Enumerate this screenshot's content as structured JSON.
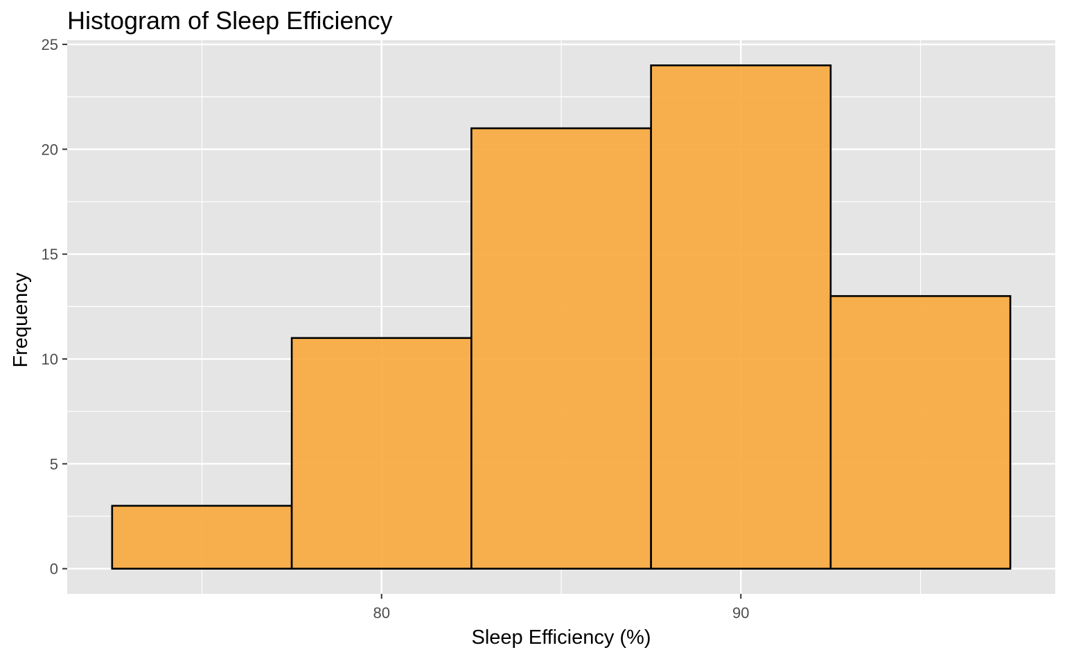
{
  "chart_data": {
    "type": "bar",
    "title": "Histogram of Sleep Efficiency",
    "xlabel": "Sleep Efficiency (%)",
    "ylabel": "Frequency",
    "bins": [
      {
        "x_start": 72.5,
        "x_end": 77.5,
        "count": 3
      },
      {
        "x_start": 77.5,
        "x_end": 82.5,
        "count": 11
      },
      {
        "x_start": 82.5,
        "x_end": 87.5,
        "count": 21
      },
      {
        "x_start": 87.5,
        "x_end": 92.5,
        "count": 24
      },
      {
        "x_start": 92.5,
        "x_end": 97.5,
        "count": 13
      }
    ],
    "xlim": [
      71.25,
      98.75
    ],
    "ylim": [
      -1.2,
      25.2
    ],
    "x_ticks": [
      80,
      90
    ],
    "x_minor_ticks": [
      75,
      85,
      95
    ],
    "y_ticks": [
      0,
      5,
      10,
      15,
      20,
      25
    ],
    "y_minor_ticks": [
      2.5,
      7.5,
      12.5,
      17.5,
      22.5
    ],
    "grid": true,
    "colors": {
      "panel_background": "#e5e5e5",
      "grid": "#ffffff",
      "bar_fill": "#f7a93b",
      "bar_outline": "#000000",
      "tick_label": "#4d4d4d",
      "tick_mark": "#333333"
    }
  }
}
